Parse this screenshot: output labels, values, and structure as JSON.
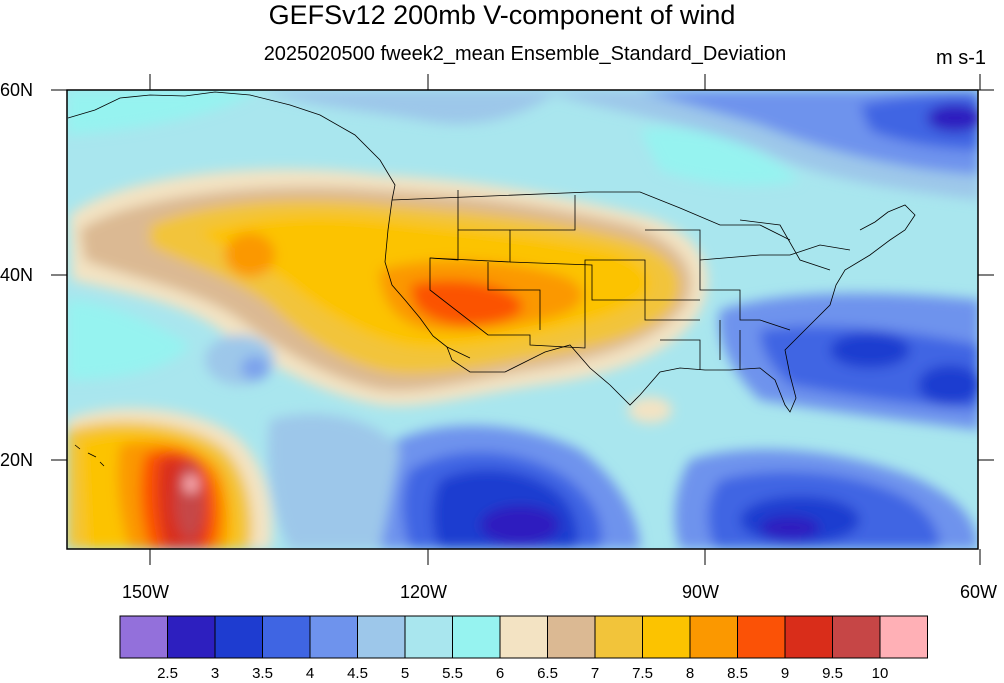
{
  "title": "GEFSv12 200mb V-component of wind",
  "subtitle": "2025020500 fweek2_mean Ensemble_Standard_Deviation",
  "units": "m s-1",
  "map": {
    "lat_range": [
      10,
      60
    ],
    "lon_range": [
      -160,
      -60
    ],
    "lat_ticks": [
      "20N",
      "40N",
      "60N"
    ],
    "lon_ticks": [
      "150W",
      "120W",
      "90W",
      "60W"
    ]
  },
  "colorbar": {
    "labels": [
      "2.5",
      "3",
      "3.5",
      "4",
      "4.5",
      "5",
      "5.5",
      "6",
      "6.5",
      "7",
      "7.5",
      "8",
      "8.5",
      "9",
      "9.5",
      "10"
    ],
    "colors": [
      "#9370db",
      "#2d1fbf",
      "#1e3cd0",
      "#3f65e3",
      "#6e93ed",
      "#9dc7ea",
      "#a9e6ee",
      "#96f3f0",
      "#f3e3c3",
      "#dbb993",
      "#f2c43a",
      "#fcc300",
      "#fb9800",
      "#fb5206",
      "#d92d1a",
      "#c64646",
      "#ffb0b6"
    ]
  }
}
